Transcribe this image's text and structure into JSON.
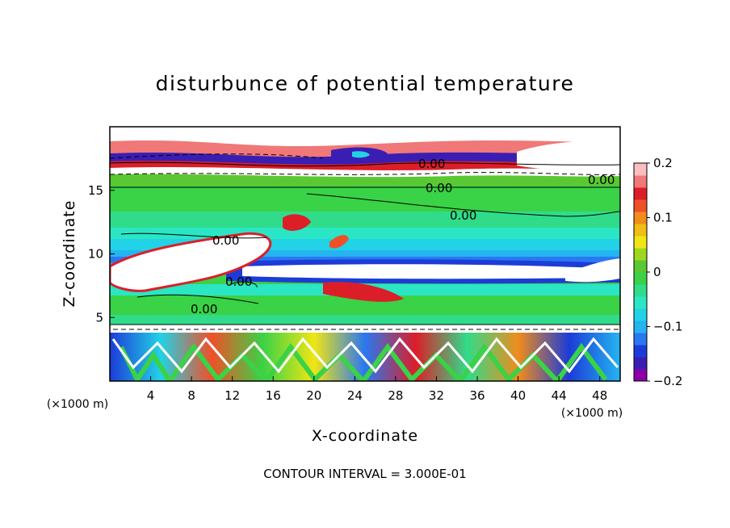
{
  "chart_data": {
    "type": "heatmap",
    "title": "disturbunce of potential temperature",
    "xlabel": "X-coordinate",
    "ylabel": "Z-coordinate",
    "x_unit_left": "(×1000 m)",
    "x_unit_right": "(×1000 m)",
    "x_ticks": [
      "4",
      "8",
      "12",
      "16",
      "20",
      "24",
      "28",
      "32",
      "36",
      "40",
      "44",
      "48"
    ],
    "y_ticks": [
      "5",
      "10",
      "15"
    ],
    "xlim": [
      0,
      50
    ],
    "ylim": [
      0,
      20
    ],
    "colorbar": {
      "range": [
        -0.2,
        0.2
      ],
      "tick_labels": [
        "0.2",
        "0.1",
        "0",
        "−0.1",
        "−0.2"
      ],
      "colors": [
        "#8b00a8",
        "#3a1eb4",
        "#1c3cd8",
        "#2a78f0",
        "#24b4f0",
        "#22d2e6",
        "#2ae6c4",
        "#30dc8a",
        "#3ad246",
        "#5ac832",
        "#9ed81e",
        "#f0e614",
        "#f0be14",
        "#f08c1c",
        "#f05028",
        "#dc1e28",
        "#f07878",
        "#fabebe"
      ]
    },
    "contour_labels": [
      "0.00",
      "0.00",
      "0.00",
      "0.00",
      "0.00",
      "0.00",
      "0.00"
    ],
    "footer": "CONTOUR INTERVAL = 3.000E-01"
  }
}
